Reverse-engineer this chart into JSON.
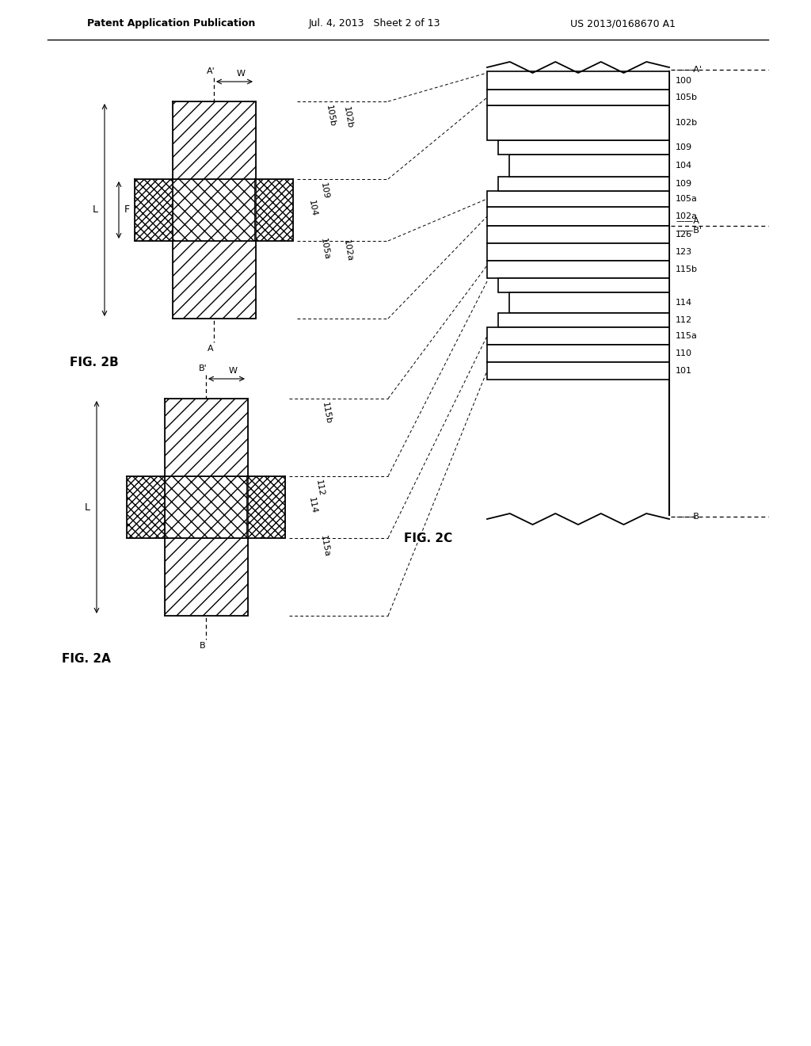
{
  "title_left": "Patent Application Publication",
  "title_mid": "Jul. 4, 2013   Sheet 2 of 13",
  "title_right": "US 2013/0168670 A1",
  "bg_color": "#ffffff",
  "line_color": "#000000"
}
